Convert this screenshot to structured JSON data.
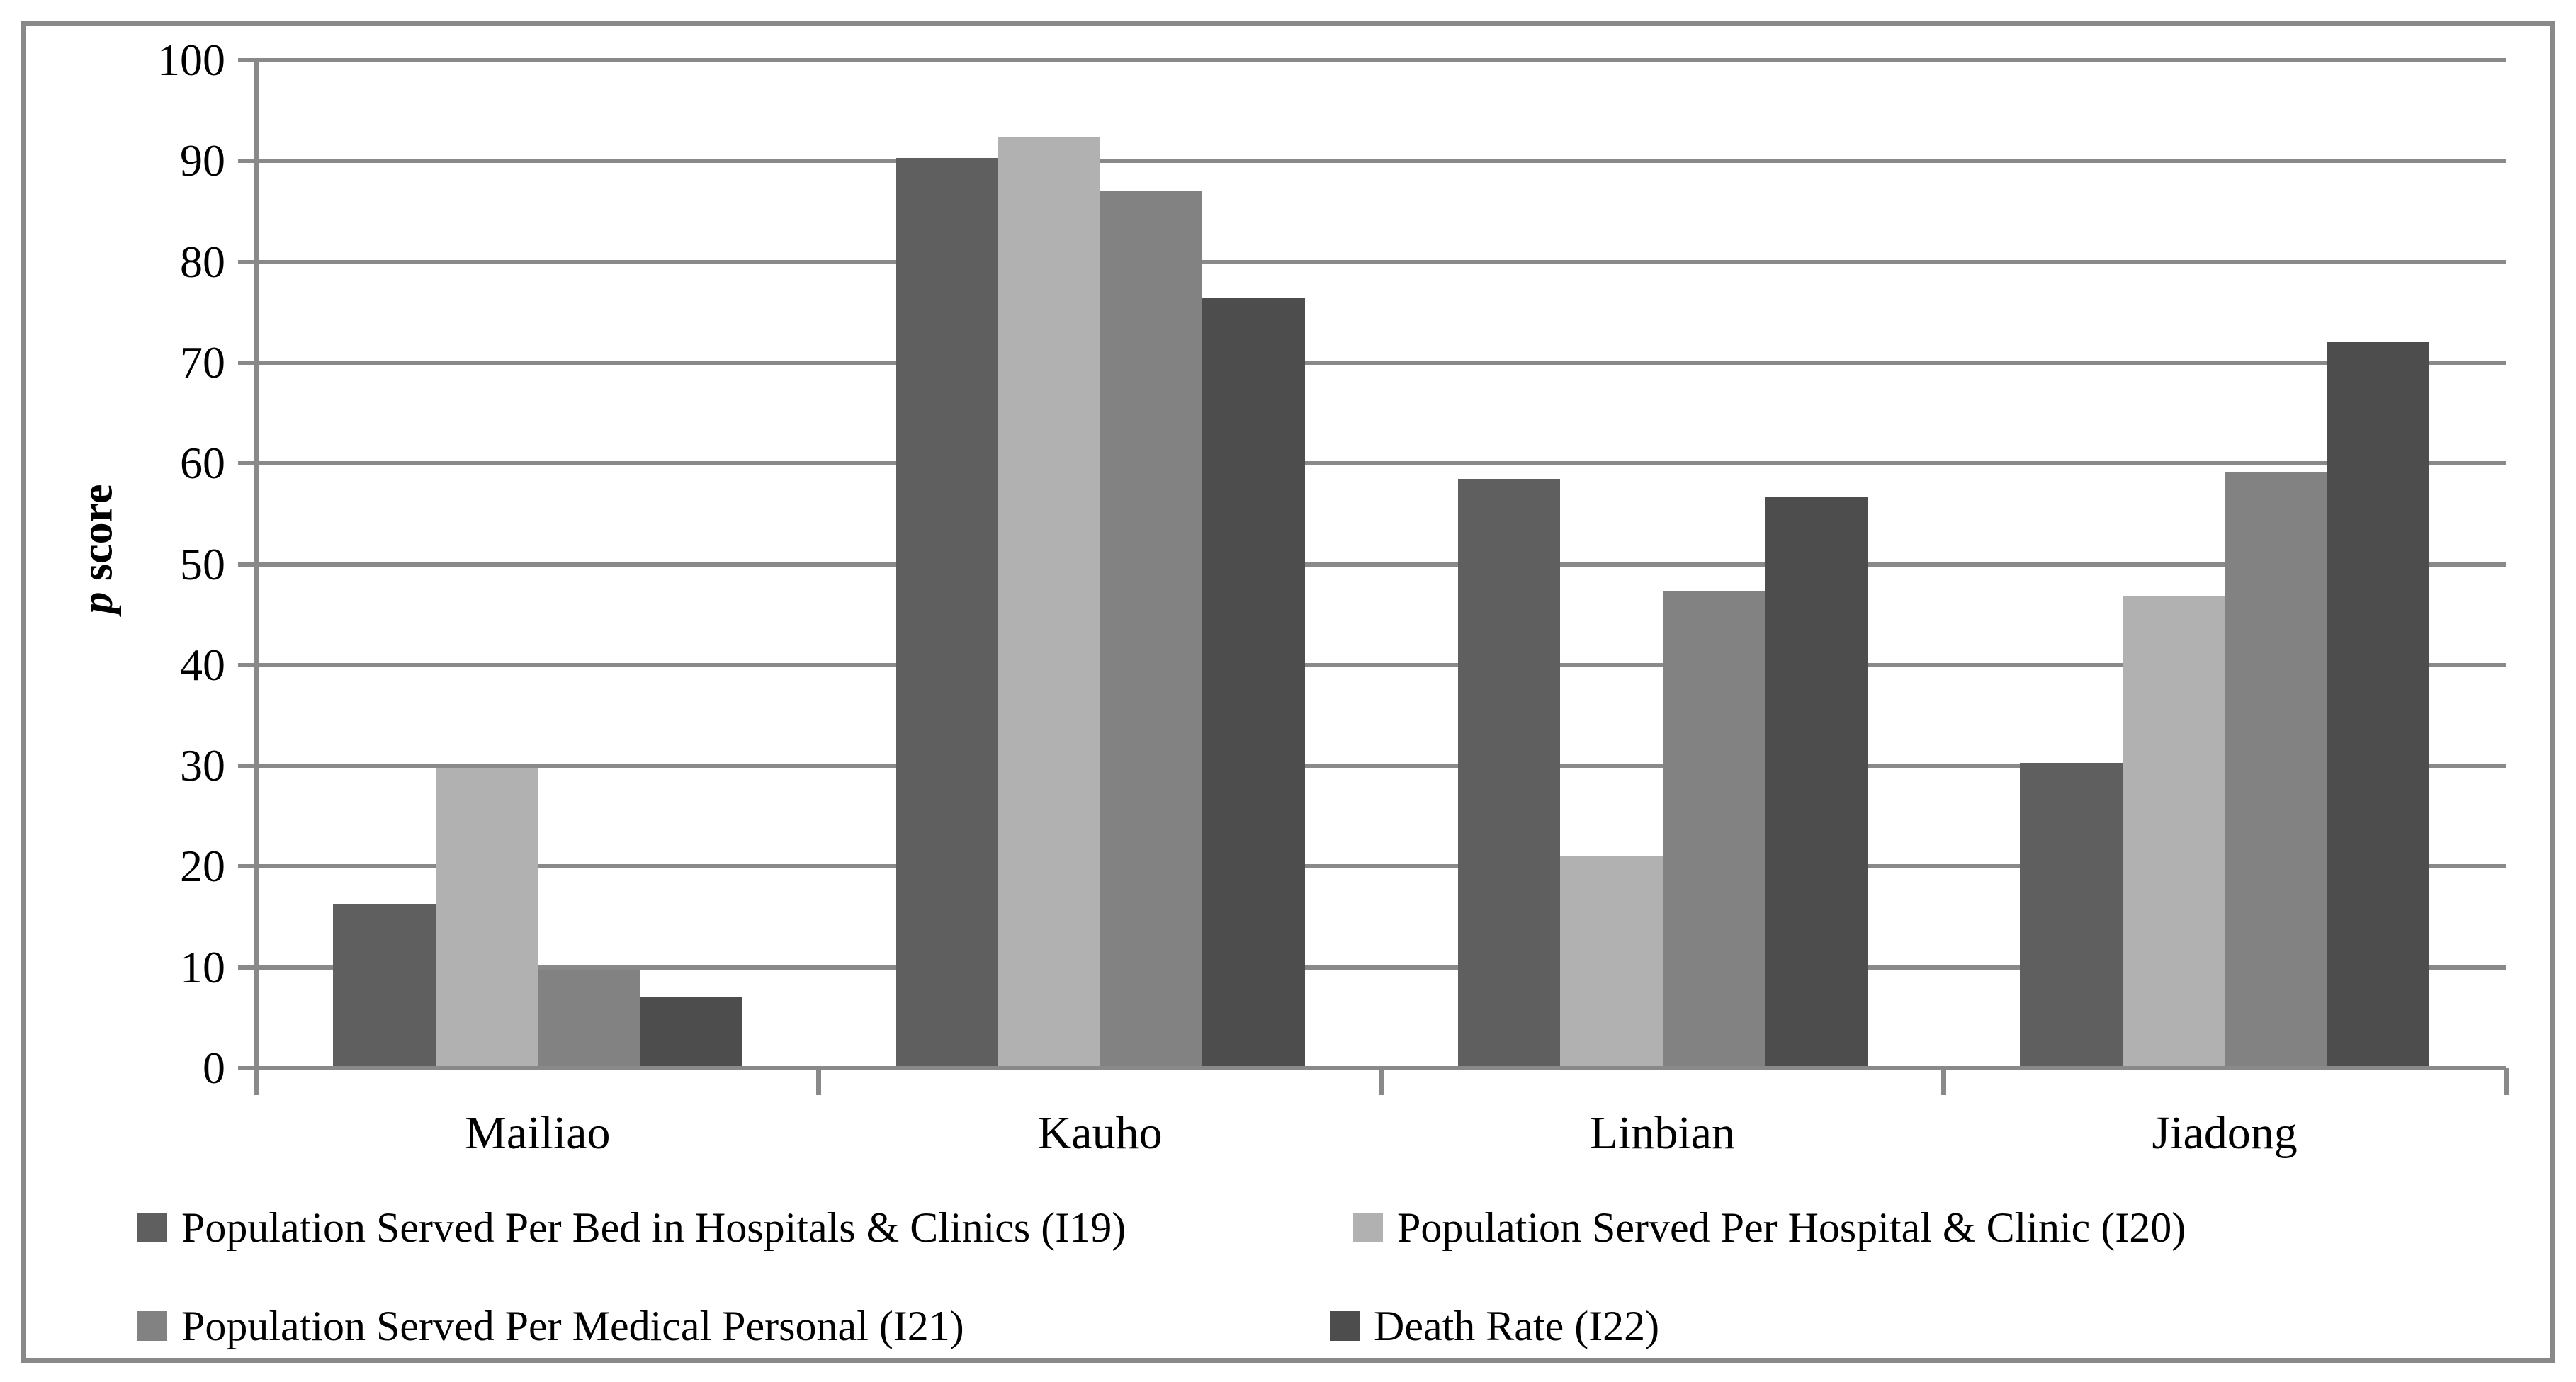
{
  "figure": {
    "y_axis_title_italic": "p",
    "y_axis_title_rest": " score"
  },
  "chart_data": {
    "type": "bar",
    "title": "",
    "xlabel": "",
    "ylabel": "p score",
    "categories": [
      "Mailiao",
      "Kauho",
      "Linbian",
      "Jiadong"
    ],
    "series": [
      {
        "name": "Population Served Per Bed in Hospitals & Clinics (I19)",
        "color": "#5f5f5f",
        "values": [
          16.3,
          90.3,
          58.5,
          30.3
        ]
      },
      {
        "name": "Population Served Per Hospital & Clinic (I20)",
        "color": "#b1b1b1",
        "values": [
          29.8,
          92.4,
          21.0,
          46.8
        ]
      },
      {
        "name": "Population Served Per Medical Personal (I21)",
        "color": "#828282",
        "values": [
          9.7,
          87.1,
          47.3,
          59.1
        ]
      },
      {
        "name": "Death Rate (I22)",
        "color": "#4d4d4d",
        "values": [
          7.1,
          76.4,
          56.7,
          72.0
        ]
      }
    ],
    "y_ticks": [
      0,
      10,
      20,
      30,
      40,
      50,
      60,
      70,
      80,
      90,
      100
    ],
    "ylim": [
      0,
      100
    ],
    "grid": true,
    "axis_color": "#898989",
    "legend_position": "bottom"
  }
}
